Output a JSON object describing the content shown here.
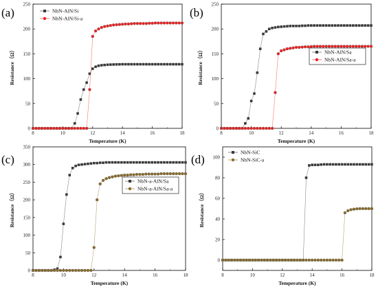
{
  "chart_data": [
    {
      "panel": "(a)",
      "type": "scatter",
      "xlabel": "Temperature (K)",
      "ylabel": "Resistance（Ω）",
      "xlim": [
        8,
        18
      ],
      "ylim": [
        0,
        250
      ],
      "x_ticks": [
        "8",
        "10",
        "12",
        "14",
        "16",
        "18"
      ],
      "y_ticks": [
        "0",
        "50",
        "100",
        "150",
        "200",
        "250"
      ],
      "legend_position": "top-left",
      "series": [
        {
          "name": "NbN-AlN/Si",
          "marker": "square",
          "color": "#3a3a3a",
          "x": [
            8.0,
            8.2,
            8.4,
            8.6,
            8.8,
            9.0,
            9.2,
            9.4,
            9.6,
            9.8,
            10.0,
            10.2,
            10.4,
            10.6,
            10.8,
            11.0,
            11.2,
            11.4,
            11.6,
            11.8,
            12.0,
            12.2,
            12.4,
            12.6,
            12.8,
            13.0,
            13.2,
            13.4,
            13.6,
            13.8,
            14.0,
            14.2,
            14.4,
            14.6,
            14.8,
            15.0,
            15.2,
            15.4,
            15.6,
            15.8,
            16.0,
            16.2,
            16.4,
            16.6,
            16.8,
            17.0,
            17.2,
            17.4,
            17.6,
            17.8,
            18.0
          ],
          "y": [
            0,
            0,
            0,
            0,
            0,
            0,
            0,
            0,
            0,
            0,
            0,
            0,
            0,
            0,
            10,
            30,
            58,
            78,
            92,
            110,
            120,
            124,
            126,
            127,
            127.5,
            128,
            128.3,
            128.5,
            128.7,
            128.8,
            129,
            129,
            129,
            129,
            129,
            129,
            129,
            129,
            129,
            129,
            129,
            129,
            129,
            129,
            129,
            129,
            129,
            129,
            129,
            129,
            129
          ]
        },
        {
          "name": "NbN-AlN/Si-a",
          "marker": "circle",
          "color": "#ee2222",
          "x": [
            8.0,
            8.2,
            8.4,
            8.6,
            8.8,
            9.0,
            9.2,
            9.4,
            9.6,
            9.8,
            10.0,
            10.2,
            10.4,
            10.6,
            10.8,
            11.0,
            11.2,
            11.4,
            11.6,
            11.8,
            12.0,
            12.2,
            12.4,
            12.6,
            12.8,
            13.0,
            13.2,
            13.4,
            13.6,
            13.8,
            14.0,
            14.2,
            14.4,
            14.6,
            14.8,
            15.0,
            15.2,
            15.4,
            15.6,
            15.8,
            16.0,
            16.2,
            16.4,
            16.6,
            16.8,
            17.0,
            17.2,
            17.4,
            17.6,
            17.8,
            18.0
          ],
          "y": [
            0,
            0,
            0,
            0,
            0,
            0,
            0,
            0,
            0,
            0,
            0,
            0,
            0,
            0,
            0,
            0,
            0,
            0,
            0,
            78,
            185,
            196,
            200,
            203,
            205,
            206,
            207,
            208,
            208.5,
            209,
            209.5,
            210,
            210,
            210.5,
            211,
            211,
            211,
            211,
            211,
            211.5,
            211.5,
            212,
            212,
            212,
            212,
            212,
            212,
            212,
            212,
            212,
            212
          ]
        }
      ]
    },
    {
      "panel": "(b)",
      "type": "scatter",
      "xlabel": "Temperature (K)",
      "ylabel": "Resistance（Ω）",
      "xlim": [
        8,
        18
      ],
      "ylim": [
        0,
        250
      ],
      "x_ticks": [
        "8",
        "10",
        "12",
        "14",
        "16",
        "18"
      ],
      "y_ticks": [
        "0",
        "50",
        "100",
        "150",
        "200",
        "250"
      ],
      "legend_position": "center-right",
      "series": [
        {
          "name": "NbN-AlN/Sa",
          "marker": "square",
          "color": "#3a3a3a",
          "x": [
            8.0,
            8.2,
            8.4,
            8.6,
            8.8,
            9.0,
            9.2,
            9.4,
            9.6,
            9.8,
            10.0,
            10.2,
            10.4,
            10.6,
            10.8,
            11.0,
            11.2,
            11.4,
            11.6,
            11.8,
            12.0,
            12.2,
            12.4,
            12.6,
            12.8,
            13.0,
            13.2,
            13.4,
            13.6,
            13.8,
            14.0,
            14.2,
            14.4,
            14.6,
            14.8,
            15.0,
            15.2,
            15.4,
            15.6,
            15.8,
            16.0,
            16.2,
            16.4,
            16.6,
            16.8,
            17.0,
            17.2,
            17.4,
            17.6,
            17.8,
            18.0
          ],
          "y": [
            0,
            0,
            0,
            0,
            0,
            0,
            0,
            0,
            10,
            20,
            55,
            70,
            112,
            160,
            190,
            195,
            200,
            202,
            203,
            204,
            204.5,
            205,
            205.5,
            206,
            206,
            206,
            206,
            206.5,
            206.5,
            207,
            207,
            207,
            207,
            207,
            207,
            207,
            207,
            207,
            207,
            207,
            207,
            207,
            207,
            207,
            207,
            207,
            207,
            207,
            207,
            207,
            207
          ]
        },
        {
          "name": "NbN-AlN/Sa-a",
          "marker": "circle",
          "color": "#ee2222",
          "x": [
            8.0,
            8.2,
            8.4,
            8.6,
            8.8,
            9.0,
            9.2,
            9.4,
            9.6,
            9.8,
            10.0,
            10.2,
            10.4,
            10.6,
            10.8,
            11.0,
            11.2,
            11.4,
            11.6,
            11.8,
            12.0,
            12.2,
            12.4,
            12.6,
            12.8,
            13.0,
            13.2,
            13.4,
            13.6,
            13.8,
            14.0,
            14.2,
            14.4,
            14.6,
            14.8,
            15.0,
            15.2,
            15.4,
            15.6,
            15.8,
            16.0,
            16.2,
            16.4,
            16.6,
            16.8,
            17.0,
            17.2,
            17.4,
            17.6,
            17.8,
            18.0
          ],
          "y": [
            0,
            0,
            0,
            0,
            0,
            0,
            0,
            0,
            0,
            0,
            0,
            0,
            0,
            0,
            0,
            0,
            0,
            0,
            72,
            150,
            156,
            158,
            160,
            161,
            162,
            163,
            163,
            163.5,
            164,
            164,
            164.5,
            165,
            165,
            165,
            165,
            165,
            165,
            165,
            165,
            165,
            165,
            165,
            165,
            165,
            165,
            165,
            165,
            165,
            165,
            165,
            165
          ]
        }
      ]
    },
    {
      "panel": "(c)",
      "type": "scatter",
      "xlabel": "Temperature (K)",
      "ylabel": "Resistance（Ω）",
      "xlim": [
        8,
        18
      ],
      "ylim": [
        0,
        350
      ],
      "x_ticks": [
        "8",
        "10",
        "12",
        "14",
        "16",
        "18"
      ],
      "y_ticks": [
        "0",
        "50",
        "100",
        "150",
        "200",
        "250",
        "300",
        "350"
      ],
      "legend_position": "center-right",
      "series": [
        {
          "name": "NbN-a-AlN/Sa",
          "marker": "square",
          "color": "#3a3a3a",
          "x": [
            8.0,
            8.2,
            8.4,
            8.6,
            8.8,
            9.0,
            9.2,
            9.4,
            9.6,
            9.8,
            10.0,
            10.2,
            10.4,
            10.6,
            10.8,
            11.0,
            11.2,
            11.4,
            11.6,
            11.8,
            12.0,
            12.2,
            12.4,
            12.6,
            12.8,
            13.0,
            13.2,
            13.4,
            13.6,
            13.8,
            14.0,
            14.2,
            14.4,
            14.6,
            14.8,
            15.0,
            15.2,
            15.4,
            15.6,
            15.8,
            16.0,
            16.2,
            16.4,
            16.6,
            16.8,
            17.0,
            17.2,
            17.4,
            17.6,
            17.8,
            18.0
          ],
          "y": [
            0,
            0,
            0,
            0,
            0,
            0,
            0,
            2,
            5,
            38,
            132,
            215,
            270,
            290,
            296,
            299,
            300,
            301,
            302,
            303,
            304,
            304,
            305,
            305,
            306,
            306,
            306,
            306,
            306,
            306,
            306,
            306,
            306,
            306,
            306,
            306,
            306,
            306,
            306,
            306,
            306,
            306,
            306,
            306,
            306,
            306,
            306,
            306,
            306,
            306,
            306
          ]
        },
        {
          "name": "NbN-a-AlN/Sa-a",
          "marker": "circle",
          "color": "#8a6b2a",
          "x": [
            8.0,
            8.2,
            8.4,
            8.6,
            8.8,
            9.0,
            9.2,
            9.4,
            9.6,
            9.8,
            10.0,
            10.2,
            10.4,
            10.6,
            10.8,
            11.0,
            11.2,
            11.4,
            11.6,
            11.8,
            12.0,
            12.2,
            12.4,
            12.6,
            12.8,
            13.0,
            13.2,
            13.4,
            13.6,
            13.8,
            14.0,
            14.2,
            14.4,
            14.6,
            14.8,
            15.0,
            15.2,
            15.4,
            15.6,
            15.8,
            16.0,
            16.2,
            16.4,
            16.6,
            16.8,
            17.0,
            17.2,
            17.4,
            17.6,
            17.8,
            18.0
          ],
          "y": [
            0,
            0,
            0,
            0,
            0,
            0,
            0,
            0,
            0,
            0,
            0,
            0,
            0,
            0,
            0,
            0,
            0,
            0,
            0,
            0,
            65,
            200,
            245,
            255,
            260,
            263,
            265,
            267,
            268,
            269,
            270,
            270,
            271,
            271,
            272,
            272,
            272,
            273,
            273,
            273,
            273,
            273,
            274,
            274,
            274,
            274,
            274,
            274,
            274,
            274,
            274
          ]
        }
      ]
    },
    {
      "panel": "(d)",
      "type": "scatter",
      "xlabel": "Temperature (K)",
      "ylabel": "Resistance（Ω）",
      "xlim": [
        8,
        18
      ],
      "ylim": [
        -10,
        110
      ],
      "x_ticks": [
        "8",
        "10",
        "12",
        "14",
        "16",
        "18"
      ],
      "y_ticks": [
        "0",
        "20",
        "40",
        "60",
        "80",
        "100"
      ],
      "legend_position": "top-left",
      "series": [
        {
          "name": "NbN-SiC",
          "marker": "square",
          "color": "#3a3a3a",
          "x": [
            8.0,
            8.2,
            8.4,
            8.6,
            8.8,
            9.0,
            9.2,
            9.4,
            9.6,
            9.8,
            10.0,
            10.2,
            10.4,
            10.6,
            10.8,
            11.0,
            11.2,
            11.4,
            11.6,
            11.8,
            12.0,
            12.2,
            12.4,
            12.6,
            12.8,
            13.0,
            13.2,
            13.4,
            13.6,
            13.8,
            14.0,
            14.2,
            14.4,
            14.6,
            14.8,
            15.0,
            15.2,
            15.4,
            15.6,
            15.8,
            16.0,
            16.2,
            16.4,
            16.6,
            16.8,
            17.0,
            17.2,
            17.4,
            17.6,
            17.8,
            18.0
          ],
          "y": [
            0,
            0,
            0,
            0,
            0,
            0,
            0,
            0,
            0,
            0,
            0,
            0,
            0,
            0,
            0,
            0,
            0,
            0,
            0,
            0,
            0,
            0,
            0,
            0,
            0,
            0,
            0,
            0,
            80,
            92,
            92.5,
            92.5,
            92.5,
            92.8,
            93,
            93,
            93,
            93,
            93,
            93,
            93,
            93,
            93,
            93,
            93,
            93,
            93,
            93,
            93,
            93,
            93
          ]
        },
        {
          "name": "NbN-SiC-a",
          "marker": "circle",
          "color": "#8a6b2a",
          "x": [
            8.0,
            8.2,
            8.4,
            8.6,
            8.8,
            9.0,
            9.2,
            9.4,
            9.6,
            9.8,
            10.0,
            10.2,
            10.4,
            10.6,
            10.8,
            11.0,
            11.2,
            11.4,
            11.6,
            11.8,
            12.0,
            12.2,
            12.4,
            12.6,
            12.8,
            13.0,
            13.2,
            13.4,
            13.6,
            13.8,
            14.0,
            14.2,
            14.4,
            14.6,
            14.8,
            15.0,
            15.2,
            15.4,
            15.6,
            15.8,
            16.0,
            16.2,
            16.4,
            16.6,
            16.8,
            17.0,
            17.2,
            17.4,
            17.6,
            17.8,
            18.0
          ],
          "y": [
            0,
            0,
            0,
            0,
            0,
            0,
            0,
            0,
            0,
            0,
            0,
            0,
            0,
            0,
            0,
            0,
            0,
            0,
            0,
            0,
            0,
            0,
            0,
            0,
            0,
            0,
            0,
            0,
            0,
            0,
            0,
            0,
            0,
            0,
            0,
            0,
            0,
            0,
            0,
            0,
            0,
            46,
            48,
            49,
            49.5,
            49.8,
            50,
            50,
            50,
            50,
            50
          ]
        }
      ]
    }
  ]
}
